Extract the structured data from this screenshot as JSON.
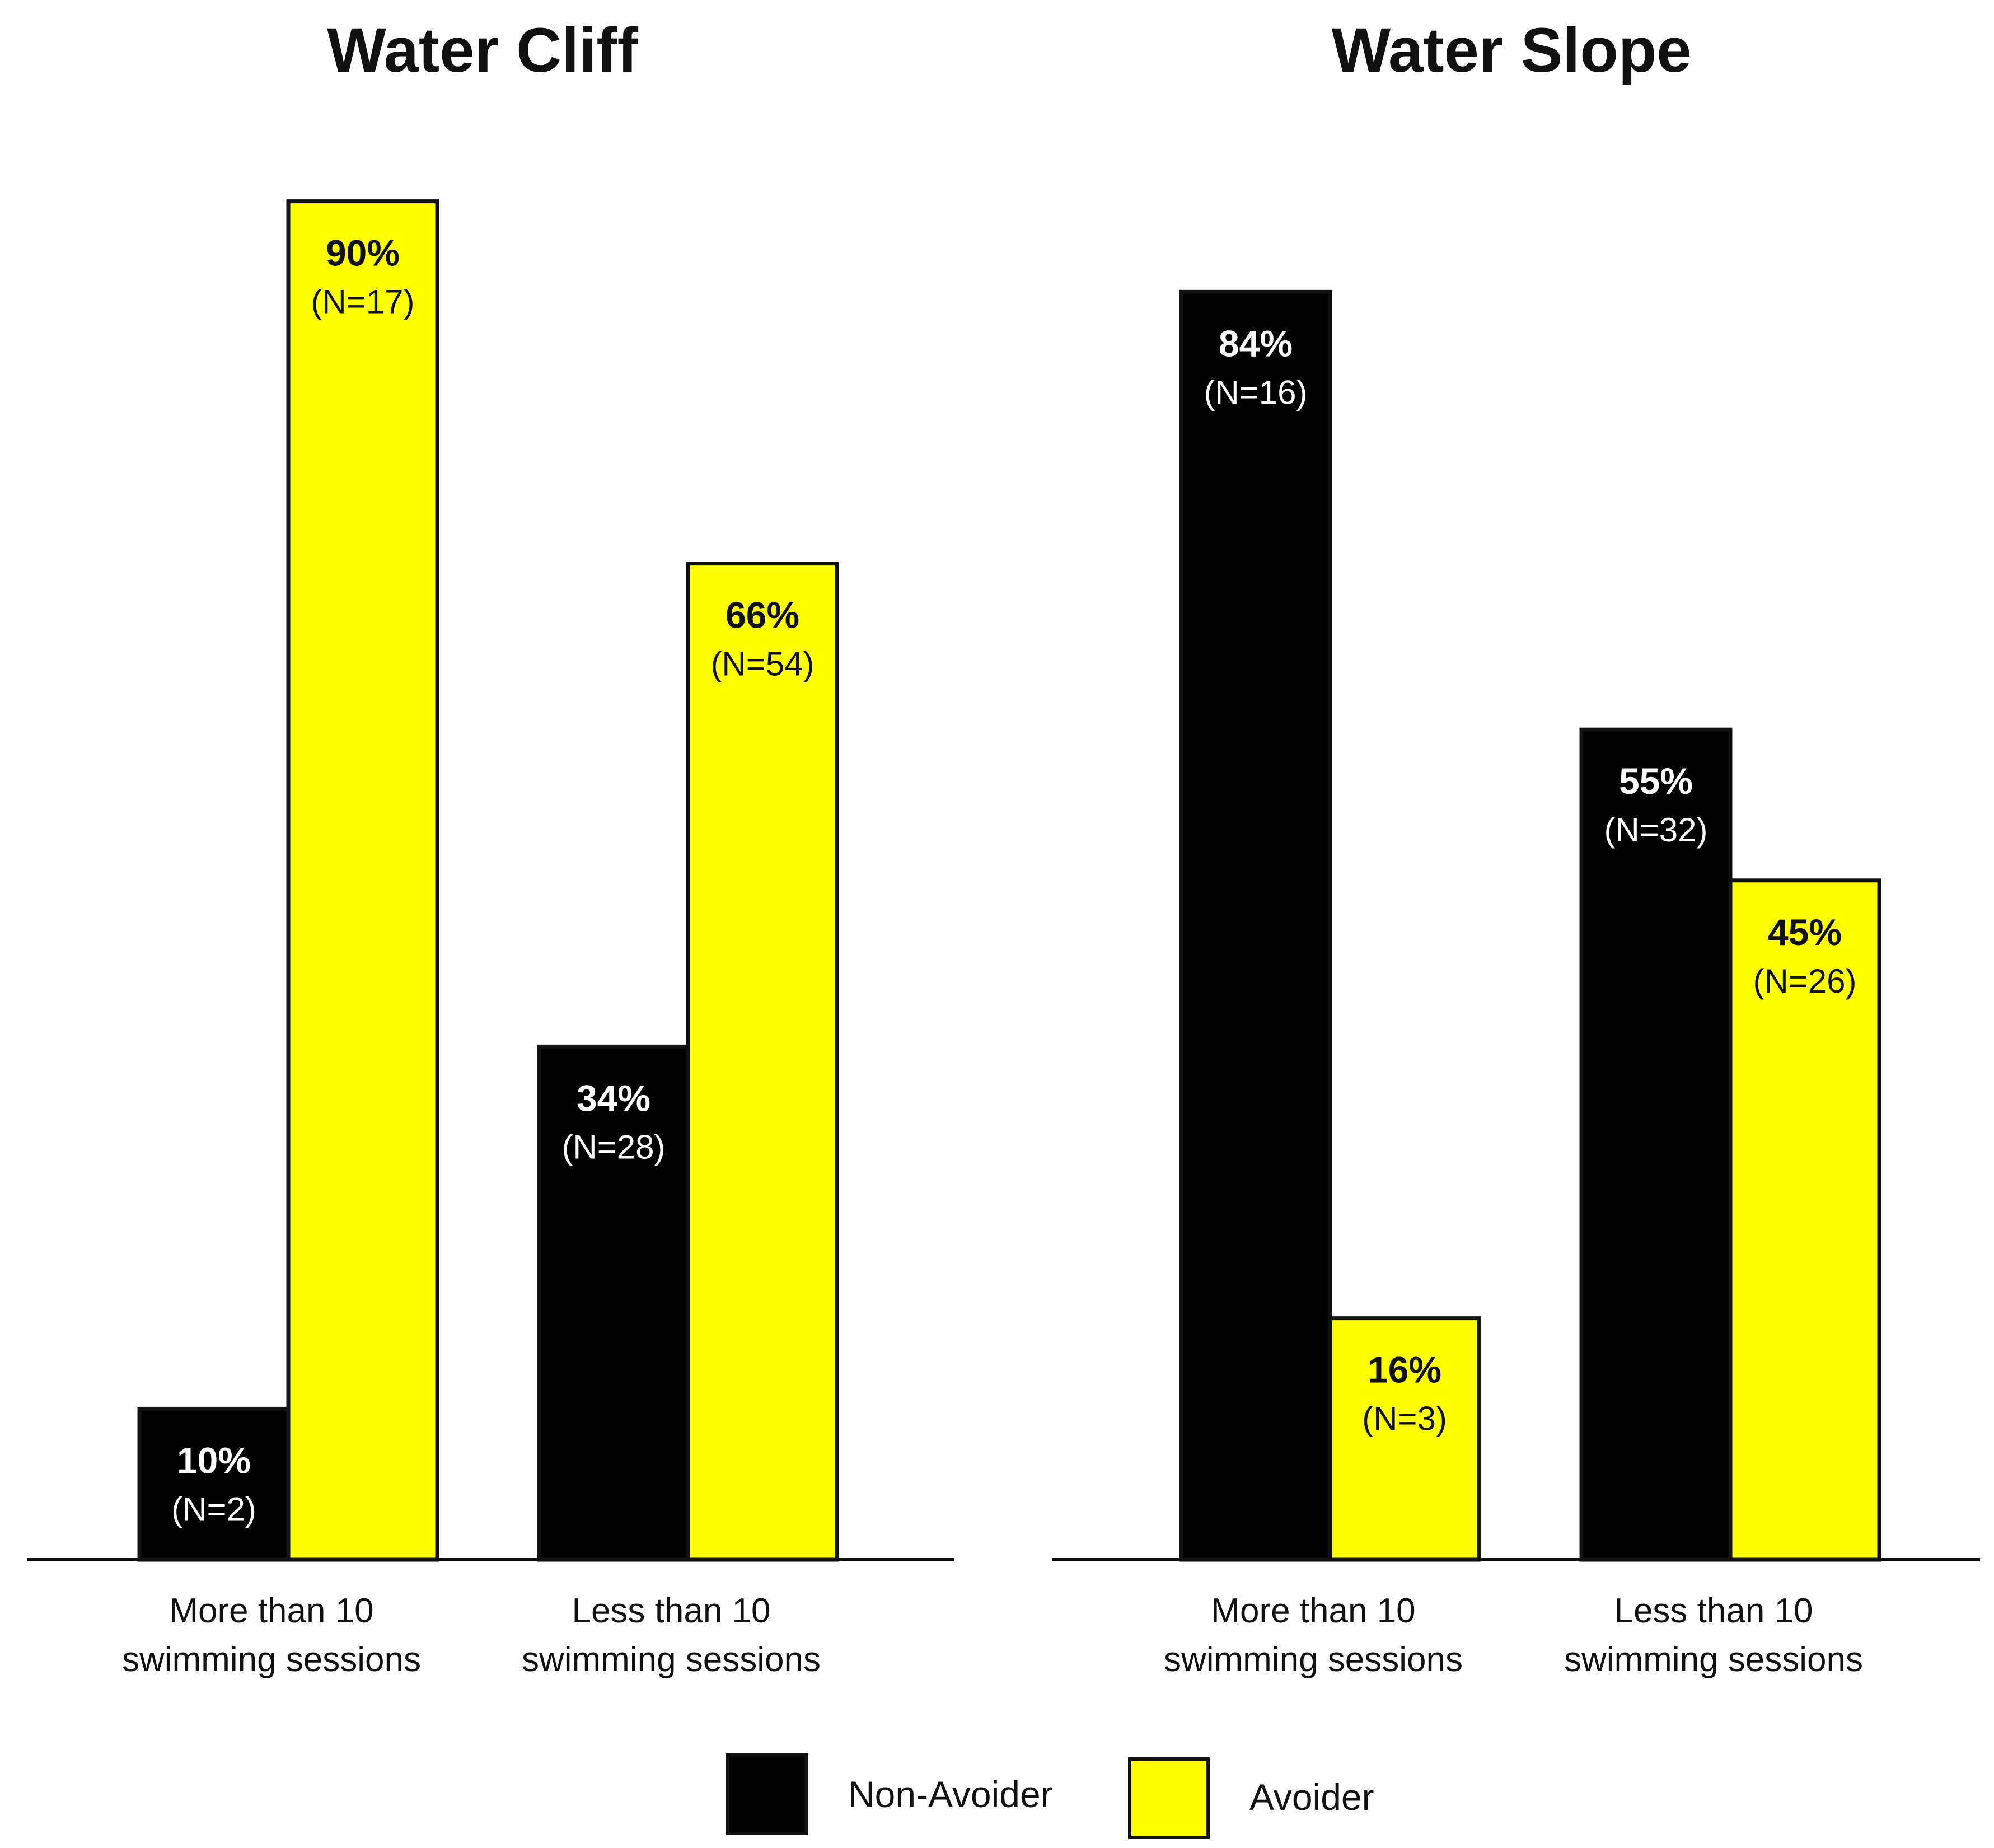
{
  "colors": {
    "non_avoider": "#000000",
    "avoider": "#FFFF00",
    "outline": "#111111",
    "text_on_dark": "#FFFFFF",
    "text_on_light": "#111111"
  },
  "legend": {
    "items": [
      {
        "key": "non_avoider",
        "label": "Non-Avoider"
      },
      {
        "key": "avoider",
        "label": "Avoider"
      }
    ]
  },
  "chart_data": [
    {
      "type": "bar",
      "title": "Water Cliff",
      "categories": [
        [
          "More than 10",
          "swimming sessions"
        ],
        [
          "Less than 10",
          "swimming sessions"
        ]
      ],
      "ylim": [
        0,
        100
      ],
      "series": [
        {
          "name": "Non-Avoider",
          "key": "non_avoider",
          "values": [
            10,
            34
          ],
          "labels": [
            "10%",
            "34%"
          ],
          "n_labels": [
            "(N=2)",
            "(N=28)"
          ]
        },
        {
          "name": "Avoider",
          "key": "avoider",
          "values": [
            90,
            66
          ],
          "labels": [
            "90%",
            "66%"
          ],
          "n_labels": [
            "(N=17)",
            "(N=54)"
          ]
        }
      ]
    },
    {
      "type": "bar",
      "title": "Water Slope",
      "categories": [
        [
          "More than 10",
          "swimming sessions"
        ],
        [
          "Less than 10",
          "swimming sessions"
        ]
      ],
      "ylim": [
        0,
        100
      ],
      "series": [
        {
          "name": "Non-Avoider",
          "key": "non_avoider",
          "values": [
            84,
            55
          ],
          "labels": [
            "84%",
            "55%"
          ],
          "n_labels": [
            "(N=16)",
            "(N=32)"
          ]
        },
        {
          "name": "Avoider",
          "key": "avoider",
          "values": [
            16,
            45
          ],
          "labels": [
            "16%",
            "45%"
          ],
          "n_labels": [
            "(N=3)",
            "(N=26)"
          ]
        }
      ]
    }
  ]
}
